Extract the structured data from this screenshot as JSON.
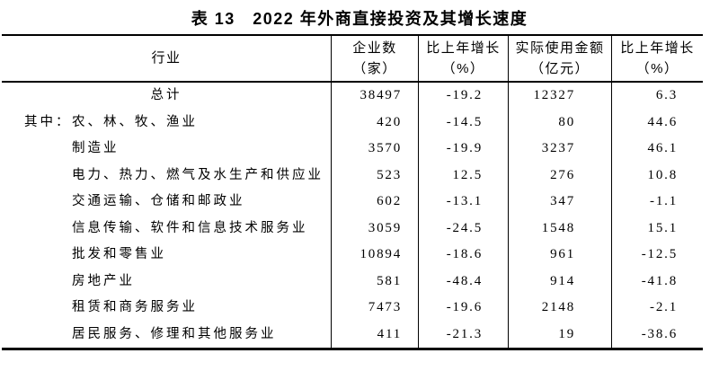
{
  "title": "表 13　2022 年外商直接投资及其增长速度",
  "table": {
    "columns": [
      {
        "label": "行业",
        "unit": ""
      },
      {
        "label": "企业数",
        "unit": "（家）"
      },
      {
        "label": "比上年增长",
        "unit": "（%）"
      },
      {
        "label": "实际使用金额",
        "unit": "（亿元）"
      },
      {
        "label": "比上年增长",
        "unit": "（%）"
      }
    ],
    "rows": [
      {
        "prefix": "",
        "industry": "总计",
        "align": "center",
        "enterprises": "38497",
        "enterprises_growth": "-19.2",
        "amount": "12327",
        "amount_growth": "6.3"
      },
      {
        "prefix": "其中：",
        "industry": "农、林、牧、渔业",
        "align": "left",
        "enterprises": "420",
        "enterprises_growth": "-14.5",
        "amount": "80",
        "amount_growth": "44.6"
      },
      {
        "prefix": "",
        "industry": "制造业",
        "align": "left",
        "enterprises": "3570",
        "enterprises_growth": "-19.9",
        "amount": "3237",
        "amount_growth": "46.1"
      },
      {
        "prefix": "",
        "industry": "电力、热力、燃气及水生产和供应业",
        "align": "left",
        "enterprises": "523",
        "enterprises_growth": "12.5",
        "amount": "276",
        "amount_growth": "10.8"
      },
      {
        "prefix": "",
        "industry": "交通运输、仓储和邮政业",
        "align": "left",
        "enterprises": "602",
        "enterprises_growth": "-13.1",
        "amount": "347",
        "amount_growth": "-1.1"
      },
      {
        "prefix": "",
        "industry": "信息传输、软件和信息技术服务业",
        "align": "left",
        "enterprises": "3059",
        "enterprises_growth": "-24.5",
        "amount": "1548",
        "amount_growth": "15.1"
      },
      {
        "prefix": "",
        "industry": "批发和零售业",
        "align": "left",
        "enterprises": "10894",
        "enterprises_growth": "-18.6",
        "amount": "961",
        "amount_growth": "-12.5"
      },
      {
        "prefix": "",
        "industry": "房地产业",
        "align": "left",
        "enterprises": "581",
        "enterprises_growth": "-48.4",
        "amount": "914",
        "amount_growth": "-41.8"
      },
      {
        "prefix": "",
        "industry": "租赁和商务服务业",
        "align": "left",
        "enterprises": "7473",
        "enterprises_growth": "-19.6",
        "amount": "2148",
        "amount_growth": "-2.1"
      },
      {
        "prefix": "",
        "industry": "居民服务、修理和其他服务业",
        "align": "left",
        "enterprises": "411",
        "enterprises_growth": "-21.3",
        "amount": "19",
        "amount_growth": "-38.6"
      }
    ]
  }
}
